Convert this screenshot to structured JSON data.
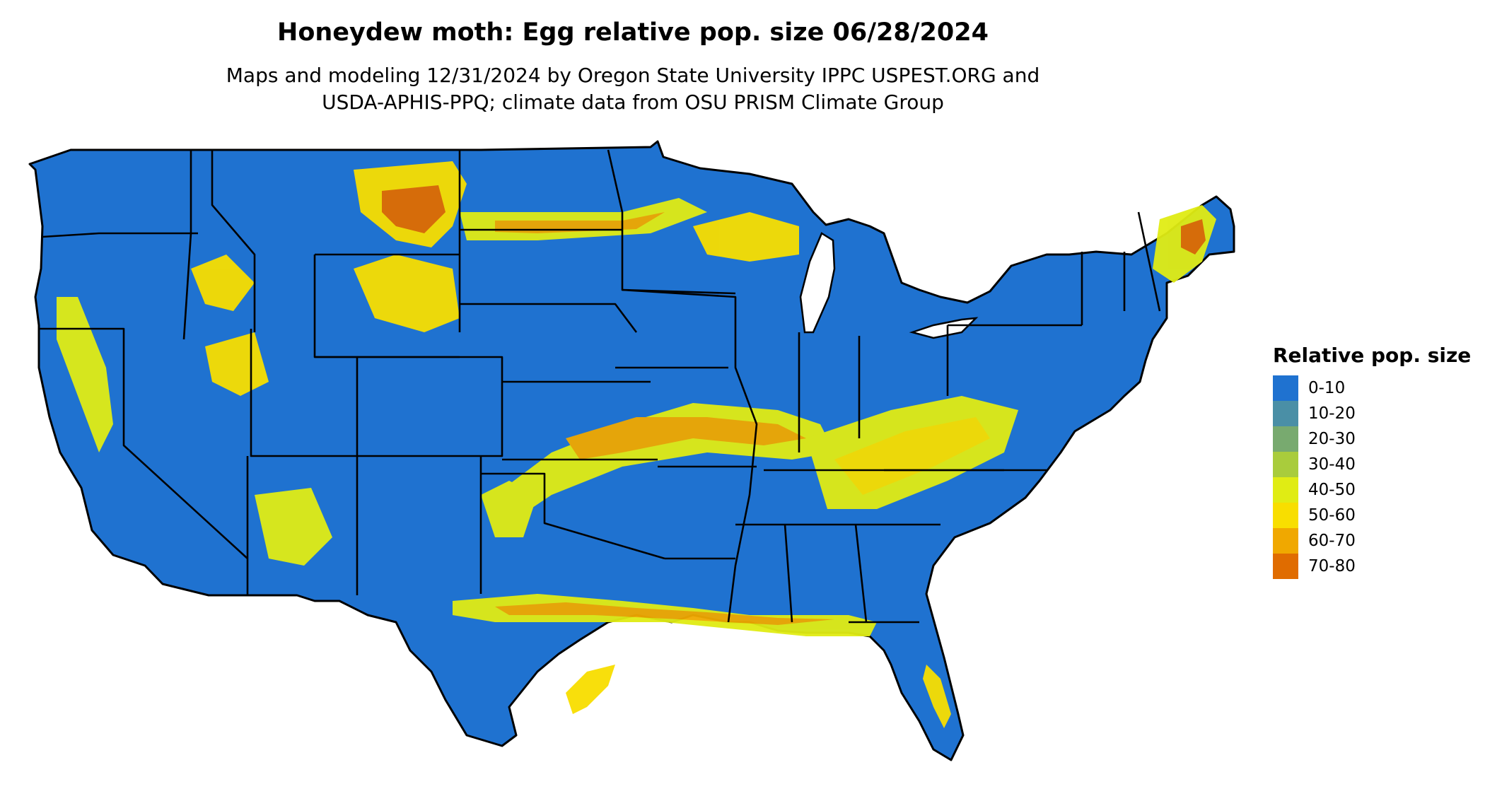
{
  "title": "Honeydew moth: Egg relative pop. size 06/28/2024",
  "subtitle_line1": "Maps and modeling 12/31/2024 by Oregon State University IPPC USPEST.ORG and",
  "subtitle_line2": "USDA-APHIS-PPQ; climate data from OSU PRISM Climate Group",
  "legend": {
    "title": "Relative pop. size",
    "items": [
      {
        "label": "0-10",
        "color": "#1f72d0"
      },
      {
        "label": "10-20",
        "color": "#4a8fa6"
      },
      {
        "label": "20-30",
        "color": "#78aa6f"
      },
      {
        "label": "30-40",
        "color": "#a9cc3c"
      },
      {
        "label": "40-50",
        "color": "#e0ec14"
      },
      {
        "label": "50-60",
        "color": "#f8de00"
      },
      {
        "label": "60-70",
        "color": "#f0a800"
      },
      {
        "label": "70-80",
        "color": "#e06c00"
      }
    ]
  }
}
